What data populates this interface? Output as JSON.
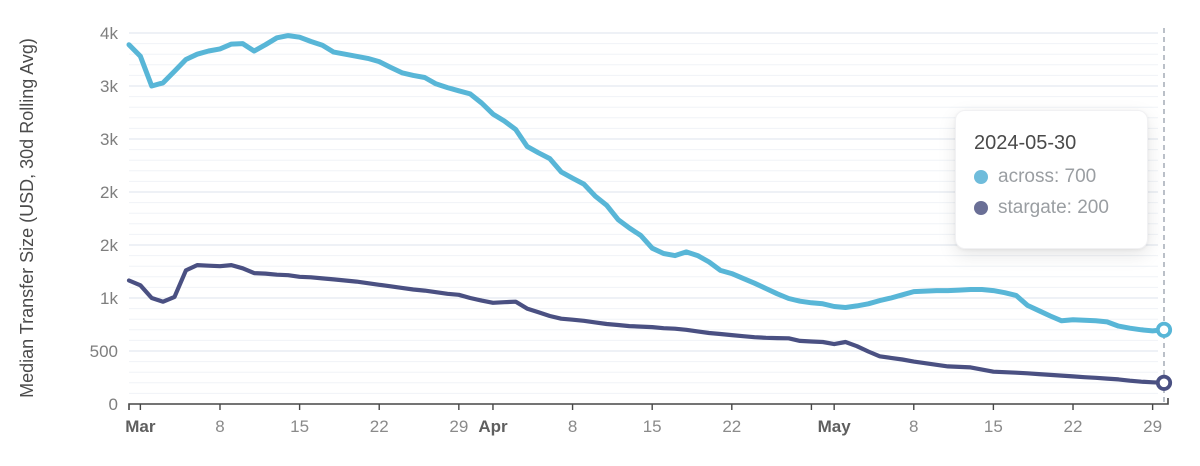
{
  "chart_data": {
    "type": "line",
    "ylabel": "Median Transfer Size (USD, 30d Rolling Avg)",
    "x_domain": [
      "2024-02-29",
      "2024-05-30"
    ],
    "ylim": [
      0,
      3500
    ],
    "grid": {
      "minor_step": 100,
      "major_step": 500,
      "orientation": "horizontal"
    },
    "legend_position": "tooltip-overlay",
    "crosshair_date": "2024-05-30",
    "end_markers": true,
    "dates": [
      "2024-02-29",
      "2024-03-01",
      "2024-03-02",
      "2024-03-03",
      "2024-03-04",
      "2024-03-05",
      "2024-03-06",
      "2024-03-07",
      "2024-03-08",
      "2024-03-09",
      "2024-03-10",
      "2024-03-11",
      "2024-03-12",
      "2024-03-13",
      "2024-03-14",
      "2024-03-15",
      "2024-03-16",
      "2024-03-17",
      "2024-03-18",
      "2024-03-19",
      "2024-03-20",
      "2024-03-21",
      "2024-03-22",
      "2024-03-23",
      "2024-03-24",
      "2024-03-25",
      "2024-03-26",
      "2024-03-27",
      "2024-03-28",
      "2024-03-29",
      "2024-03-30",
      "2024-03-31",
      "2024-04-01",
      "2024-04-02",
      "2024-04-03",
      "2024-04-04",
      "2024-04-05",
      "2024-04-06",
      "2024-04-07",
      "2024-04-08",
      "2024-04-09",
      "2024-04-10",
      "2024-04-11",
      "2024-04-12",
      "2024-04-13",
      "2024-04-14",
      "2024-04-15",
      "2024-04-16",
      "2024-04-17",
      "2024-04-18",
      "2024-04-19",
      "2024-04-20",
      "2024-04-21",
      "2024-04-22",
      "2024-04-23",
      "2024-04-24",
      "2024-04-25",
      "2024-04-26",
      "2024-04-27",
      "2024-04-28",
      "2024-04-29",
      "2024-04-30",
      "2024-05-01",
      "2024-05-02",
      "2024-05-03",
      "2024-05-04",
      "2024-05-05",
      "2024-05-06",
      "2024-05-07",
      "2024-05-08",
      "2024-05-09",
      "2024-05-10",
      "2024-05-11",
      "2024-05-12",
      "2024-05-13",
      "2024-05-14",
      "2024-05-15",
      "2024-05-16",
      "2024-05-17",
      "2024-05-18",
      "2024-05-19",
      "2024-05-20",
      "2024-05-21",
      "2024-05-22",
      "2024-05-23",
      "2024-05-24",
      "2024-05-25",
      "2024-05-26",
      "2024-05-27",
      "2024-05-28",
      "2024-05-29",
      "2024-05-30"
    ],
    "series": [
      {
        "name": "across",
        "values": [
          3390,
          3280,
          3000,
          3030,
          3140,
          3250,
          3300,
          3330,
          3350,
          3395,
          3400,
          3330,
          3390,
          3455,
          3475,
          3460,
          3420,
          3385,
          3320,
          3300,
          3280,
          3260,
          3230,
          3175,
          3125,
          3100,
          3080,
          3020,
          2985,
          2955,
          2925,
          2840,
          2735,
          2670,
          2590,
          2430,
          2370,
          2315,
          2190,
          2130,
          2075,
          1960,
          1875,
          1740,
          1660,
          1590,
          1470,
          1420,
          1400,
          1435,
          1400,
          1340,
          1260,
          1230,
          1185,
          1140,
          1090,
          1040,
          995,
          970,
          955,
          945,
          920,
          910,
          925,
          945,
          975,
          1000,
          1030,
          1060,
          1065,
          1070,
          1070,
          1075,
          1080,
          1080,
          1070,
          1050,
          1025,
          930,
          880,
          830,
          785,
          795,
          790,
          785,
          775,
          735,
          715,
          700,
          690,
          700
        ]
      },
      {
        "name": "stargate",
        "values": [
          1165,
          1120,
          1000,
          965,
          1010,
          1260,
          1310,
          1305,
          1300,
          1310,
          1280,
          1235,
          1230,
          1220,
          1215,
          1200,
          1195,
          1185,
          1175,
          1165,
          1155,
          1140,
          1125,
          1110,
          1095,
          1080,
          1070,
          1055,
          1040,
          1030,
          1000,
          975,
          955,
          960,
          965,
          900,
          865,
          830,
          805,
          795,
          785,
          770,
          755,
          745,
          735,
          730,
          725,
          715,
          710,
          700,
          685,
          670,
          660,
          650,
          640,
          630,
          625,
          622,
          620,
          595,
          590,
          585,
          565,
          585,
          545,
          495,
          450,
          435,
          420,
          400,
          385,
          370,
          355,
          350,
          345,
          325,
          305,
          300,
          295,
          290,
          282,
          275,
          268,
          260,
          253,
          247,
          240,
          232,
          220,
          210,
          205,
          200
        ]
      }
    ],
    "x_ticks": [
      {
        "date": "2024-03-01",
        "label": "Mar",
        "bold": true
      },
      {
        "date": "2024-03-08",
        "label": "8",
        "bold": false
      },
      {
        "date": "2024-03-15",
        "label": "15",
        "bold": false
      },
      {
        "date": "2024-03-22",
        "label": "22",
        "bold": false
      },
      {
        "date": "2024-03-29",
        "label": "29",
        "bold": false
      },
      {
        "date": "2024-04-01",
        "label": "Apr",
        "bold": true
      },
      {
        "date": "2024-04-08",
        "label": "8",
        "bold": false
      },
      {
        "date": "2024-04-15",
        "label": "15",
        "bold": false
      },
      {
        "date": "2024-04-22",
        "label": "22",
        "bold": false
      },
      {
        "date": "2024-04-29",
        "label": "",
        "bold": false
      },
      {
        "date": "2024-05-01",
        "label": "May",
        "bold": true
      },
      {
        "date": "2024-05-08",
        "label": "8",
        "bold": false
      },
      {
        "date": "2024-05-15",
        "label": "15",
        "bold": false
      },
      {
        "date": "2024-05-22",
        "label": "22",
        "bold": false
      },
      {
        "date": "2024-05-29",
        "label": "29",
        "bold": false
      }
    ],
    "y_ticks": [
      {
        "value": 0,
        "label": "0"
      },
      {
        "value": 500,
        "label": "500"
      },
      {
        "value": 1000,
        "label": "1k"
      },
      {
        "value": 1500,
        "label": "2k"
      },
      {
        "value": 2000,
        "label": "2k"
      },
      {
        "value": 2500,
        "label": "3k"
      },
      {
        "value": 3000,
        "label": "3k"
      },
      {
        "value": 3500,
        "label": "4k"
      }
    ]
  },
  "tooltip": {
    "date": "2024-05-30",
    "separator": ": ",
    "rows": [
      {
        "label": "across",
        "value": "700",
        "color": "#6fbcdb"
      },
      {
        "label": "stargate",
        "value": "200",
        "color": "#6a6f96"
      }
    ]
  },
  "colors": {
    "across": "#58b6d7",
    "stargate": "#4a5082",
    "grid_minor": "#f0f3f7",
    "grid_major": "#dde3ec",
    "axis": "#474747",
    "tick_label": "#8a8a8a",
    "month_label": "#5f5f5f",
    "y_tick_label": "#7e7e7e",
    "y_title": "#4b4b4b",
    "crosshair": "#aab0bb",
    "background": "#ffffff"
  }
}
